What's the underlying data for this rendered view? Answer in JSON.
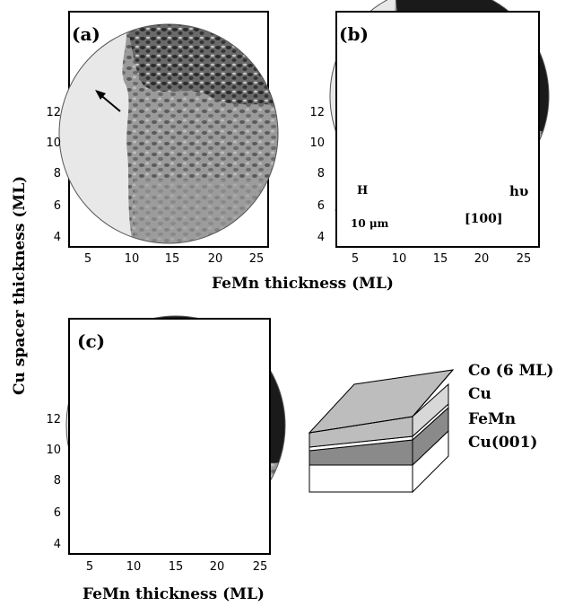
{
  "panels": [
    {
      "label": "(a)"
    },
    {
      "label": "(b)"
    },
    {
      "label": "(c)"
    }
  ],
  "y_ticks": [
    "12",
    "10",
    "8",
    "6",
    "4"
  ],
  "x_ticks": [
    "5",
    "10",
    "15",
    "20",
    "25"
  ],
  "axis": {
    "x_title_top": "FeMn thickness (ML)",
    "x_title_bottom": "FeMn thickness (ML)",
    "y_title": "Cu spacer thickness (ML)"
  },
  "annotations": {
    "field_label": "H",
    "scale_label": "10 μm",
    "photon_label": "hυ",
    "direction_label": "[100]"
  },
  "layers": {
    "co": "Co (6 ML)",
    "cu": "Cu",
    "femn": "FeMn",
    "substrate": "Cu(001)"
  },
  "colors": {
    "dark_domain": "#1a1a1a",
    "light_domain": "#e8e8e8",
    "layer_co": "#bdbdbd",
    "layer_femn": "#8a8a8a"
  }
}
